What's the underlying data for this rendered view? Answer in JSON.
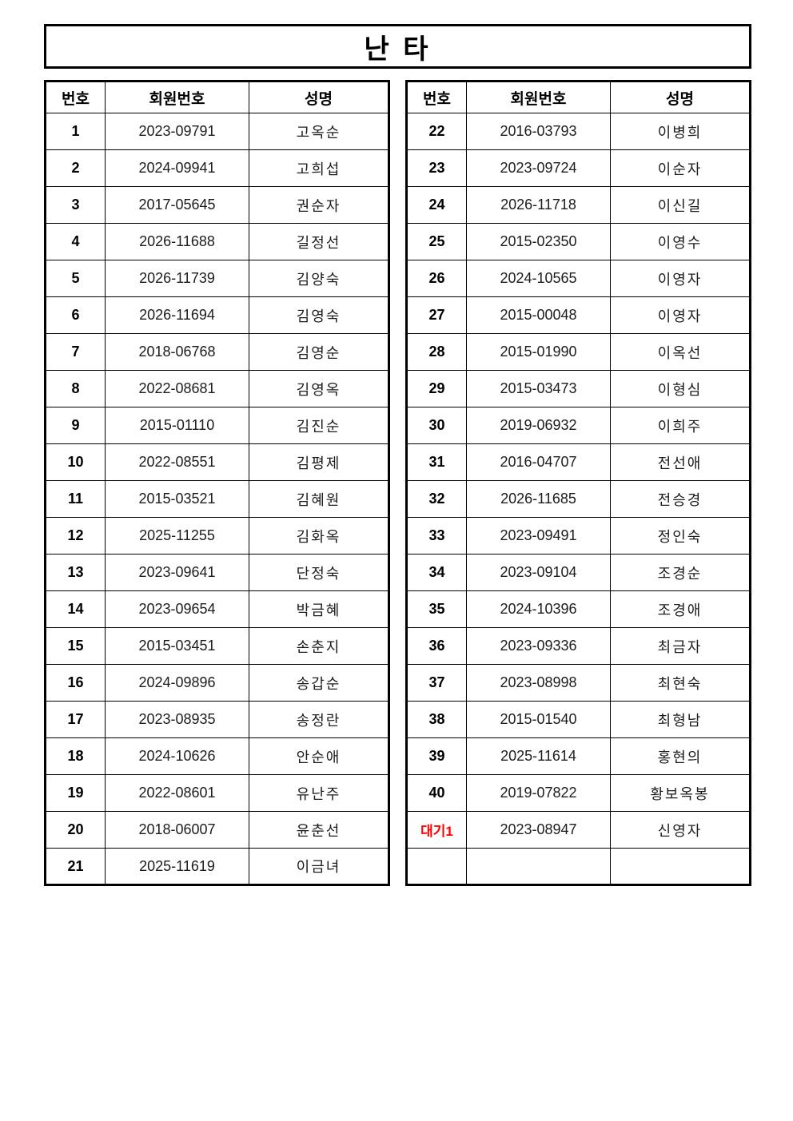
{
  "title": "난 타",
  "headers": [
    "번호",
    "회원번호",
    "성명"
  ],
  "colors": {
    "border": "#000000",
    "text": "#1c1c1c",
    "wait_label": "#ff0000"
  },
  "tables": {
    "left": {
      "rows": [
        {
          "no": "1",
          "member_no": "2023-09791",
          "name": "고옥순"
        },
        {
          "no": "2",
          "member_no": "2024-09941",
          "name": "고희섭"
        },
        {
          "no": "3",
          "member_no": "2017-05645",
          "name": "권순자"
        },
        {
          "no": "4",
          "member_no": "2026-11688",
          "name": "길정선"
        },
        {
          "no": "5",
          "member_no": "2026-11739",
          "name": "김양숙"
        },
        {
          "no": "6",
          "member_no": "2026-11694",
          "name": "김영숙"
        },
        {
          "no": "7",
          "member_no": "2018-06768",
          "name": "김영순"
        },
        {
          "no": "8",
          "member_no": "2022-08681",
          "name": "김영옥"
        },
        {
          "no": "9",
          "member_no": "2015-01110",
          "name": "김진순"
        },
        {
          "no": "10",
          "member_no": "2022-08551",
          "name": "김평제"
        },
        {
          "no": "11",
          "member_no": "2015-03521",
          "name": "김혜원"
        },
        {
          "no": "12",
          "member_no": "2025-11255",
          "name": "김화옥"
        },
        {
          "no": "13",
          "member_no": "2023-09641",
          "name": "단정숙"
        },
        {
          "no": "14",
          "member_no": "2023-09654",
          "name": "박금혜"
        },
        {
          "no": "15",
          "member_no": "2015-03451",
          "name": "손춘지"
        },
        {
          "no": "16",
          "member_no": "2024-09896",
          "name": "송갑순"
        },
        {
          "no": "17",
          "member_no": "2023-08935",
          "name": "송정란"
        },
        {
          "no": "18",
          "member_no": "2024-10626",
          "name": "안순애"
        },
        {
          "no": "19",
          "member_no": "2022-08601",
          "name": "유난주"
        },
        {
          "no": "20",
          "member_no": "2018-06007",
          "name": "윤춘선"
        },
        {
          "no": "21",
          "member_no": "2025-11619",
          "name": "이금녀"
        }
      ]
    },
    "right": {
      "rows": [
        {
          "no": "22",
          "member_no": "2016-03793",
          "name": "이병희"
        },
        {
          "no": "23",
          "member_no": "2023-09724",
          "name": "이순자"
        },
        {
          "no": "24",
          "member_no": "2026-11718",
          "name": "이신길"
        },
        {
          "no": "25",
          "member_no": "2015-02350",
          "name": "이영수"
        },
        {
          "no": "26",
          "member_no": "2024-10565",
          "name": "이영자"
        },
        {
          "no": "27",
          "member_no": "2015-00048",
          "name": "이영자"
        },
        {
          "no": "28",
          "member_no": "2015-01990",
          "name": "이옥선"
        },
        {
          "no": "29",
          "member_no": "2015-03473",
          "name": "이형심"
        },
        {
          "no": "30",
          "member_no": "2019-06932",
          "name": "이희주"
        },
        {
          "no": "31",
          "member_no": "2016-04707",
          "name": "전선애"
        },
        {
          "no": "32",
          "member_no": "2026-11685",
          "name": "전승경"
        },
        {
          "no": "33",
          "member_no": "2023-09491",
          "name": "정인숙"
        },
        {
          "no": "34",
          "member_no": "2023-09104",
          "name": "조경순"
        },
        {
          "no": "35",
          "member_no": "2024-10396",
          "name": "조경애"
        },
        {
          "no": "36",
          "member_no": "2023-09336",
          "name": "최금자"
        },
        {
          "no": "37",
          "member_no": "2023-08998",
          "name": "최현숙"
        },
        {
          "no": "38",
          "member_no": "2015-01540",
          "name": "최형남"
        },
        {
          "no": "39",
          "member_no": "2025-11614",
          "name": "홍현의"
        },
        {
          "no": "40",
          "member_no": "2019-07822",
          "name": "황보옥봉"
        },
        {
          "no": "대기1",
          "member_no": "2023-08947",
          "name": "신영자",
          "wait": true
        },
        {
          "no": "",
          "member_no": "",
          "name": ""
        }
      ]
    }
  }
}
